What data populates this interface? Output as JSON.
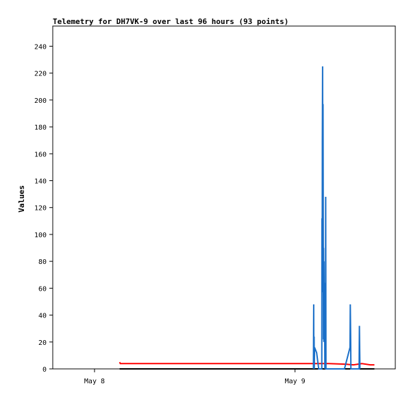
{
  "chart_data": {
    "type": "line",
    "title": "Telemetry for DH7VK-9 over last 96 hours (93 points)",
    "xlabel": "",
    "ylabel": "Values",
    "ylim": [
      0,
      255
    ],
    "yticks": [
      0,
      20,
      40,
      60,
      80,
      100,
      120,
      140,
      160,
      180,
      200,
      220,
      240
    ],
    "xlim": [
      "2024-05-07 19:00",
      "2024-05-09 12:00"
    ],
    "xticks": [
      {
        "label": "May 8",
        "t": "2024-05-08 00:00"
      },
      {
        "label": "May 9",
        "t": "2024-05-09 00:00"
      }
    ],
    "grid": false,
    "series": [
      {
        "color": "#000000",
        "points": [
          [
            "2024-05-08 03:00",
            0
          ],
          [
            "2024-05-09 09:30",
            0
          ]
        ]
      },
      {
        "color": "#ff0000",
        "points": [
          [
            "2024-05-08 03:00",
            5
          ],
          [
            "2024-05-08 03:05",
            4
          ],
          [
            "2024-05-09 04:00",
            4
          ],
          [
            "2024-05-09 06:00",
            3.5
          ],
          [
            "2024-05-09 07:00",
            3
          ],
          [
            "2024-05-09 08:00",
            4
          ],
          [
            "2024-05-09 09:00",
            3
          ],
          [
            "2024-05-09 09:30",
            3
          ]
        ]
      },
      {
        "color": "#1a6fc8",
        "points": [
          [
            "2024-05-09 02:12",
            0
          ],
          [
            "2024-05-09 02:13",
            25
          ],
          [
            "2024-05-09 02:14",
            48
          ],
          [
            "2024-05-09 02:15",
            0
          ],
          [
            "2024-05-09 02:17",
            24
          ],
          [
            "2024-05-09 02:18",
            0
          ],
          [
            "2024-05-09 02:20",
            16
          ],
          [
            "2024-05-09 02:35",
            12
          ],
          [
            "2024-05-09 02:50",
            0
          ],
          [
            "2024-05-09 03:12",
            0
          ],
          [
            "2024-05-09 03:13",
            112
          ],
          [
            "2024-05-09 03:15",
            57
          ],
          [
            "2024-05-09 03:16",
            168
          ],
          [
            "2024-05-09 03:18",
            225
          ],
          [
            "2024-05-09 03:20",
            60
          ],
          [
            "2024-05-09 03:21",
            197
          ],
          [
            "2024-05-09 03:22",
            145
          ],
          [
            "2024-05-09 03:24",
            22
          ],
          [
            "2024-05-09 03:25",
            90
          ],
          [
            "2024-05-09 03:27",
            20
          ],
          [
            "2024-05-09 03:28",
            80
          ],
          [
            "2024-05-09 03:30",
            30
          ],
          [
            "2024-05-09 03:32",
            64
          ],
          [
            "2024-05-09 03:34",
            0
          ],
          [
            "2024-05-09 03:36",
            32
          ],
          [
            "2024-05-09 03:38",
            0
          ],
          [
            "2024-05-09 03:40",
            128
          ],
          [
            "2024-05-09 03:42",
            0
          ],
          [
            "2024-05-09 05:55",
            0
          ],
          [
            "2024-05-09 06:35",
            16
          ],
          [
            "2024-05-09 06:37",
            48
          ],
          [
            "2024-05-09 06:39",
            25
          ],
          [
            "2024-05-09 06:41",
            0
          ],
          [
            "2024-05-09 07:40",
            0
          ],
          [
            "2024-05-09 07:42",
            32
          ],
          [
            "2024-05-09 07:44",
            16
          ],
          [
            "2024-05-09 07:46",
            0
          ]
        ]
      }
    ]
  }
}
